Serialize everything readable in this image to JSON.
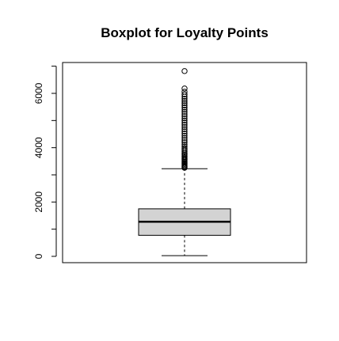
{
  "chart_data": {
    "type": "boxplot",
    "title": "Boxplot for Loyalty Points",
    "xlabel": "",
    "ylabel": "",
    "ylim": [
      0,
      7000
    ],
    "yticks": [
      0,
      2000,
      4000,
      6000
    ],
    "box": {
      "whisker_low": 25,
      "q1": 775,
      "median": 1275,
      "q3": 1750,
      "whisker_high": 3225
    },
    "outliers": [
      3260,
      3290,
      3320,
      3360,
      3400,
      3440,
      3480,
      3520,
      3560,
      3600,
      3650,
      3700,
      3750,
      3800,
      3860,
      3920,
      3980,
      4050,
      4120,
      4200,
      4280,
      4360,
      4440,
      4520,
      4600,
      4680,
      4760,
      4840,
      4920,
      5000,
      5080,
      5160,
      5240,
      5320,
      5400,
      5480,
      5560,
      5640,
      5720,
      5800,
      5880,
      5960,
      6060,
      6180,
      6820
    ],
    "colors": {
      "box_fill": "#d3d3d3",
      "stroke": "#000000",
      "background": "#ffffff"
    },
    "grid": false
  }
}
